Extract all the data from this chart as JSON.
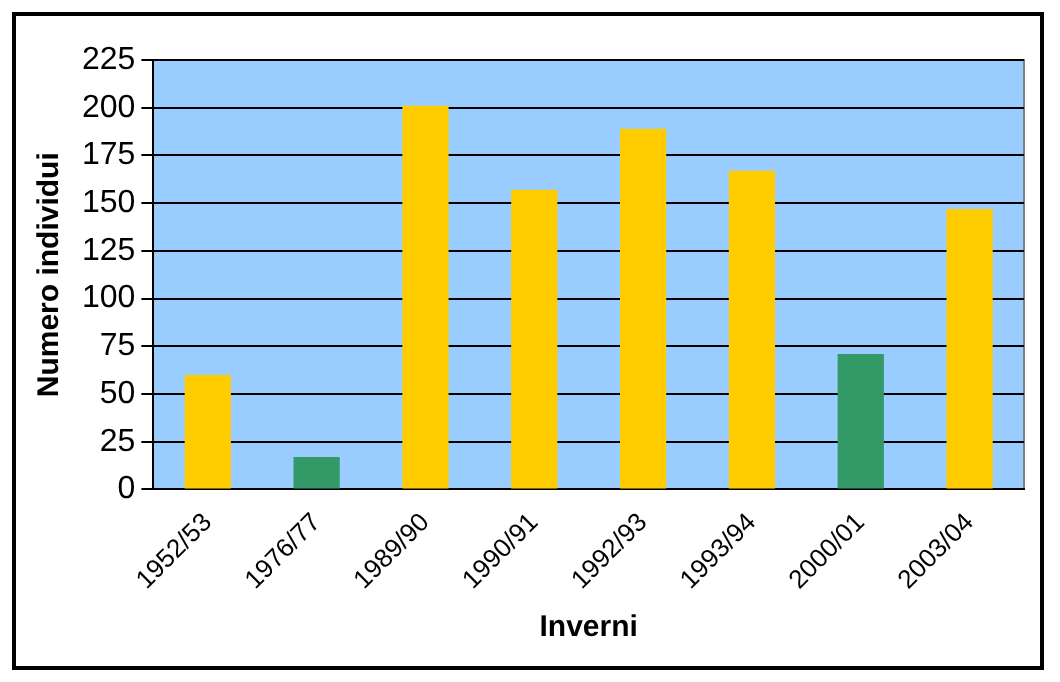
{
  "chart_data": {
    "type": "bar",
    "xlabel": "Inverni",
    "ylabel": "Numero individui",
    "categories": [
      "1952/53",
      "1976/77",
      "1989/90",
      "1990/91",
      "1992/93",
      "1993/94",
      "2000/01",
      "2003/04"
    ],
    "values": [
      60,
      17,
      201,
      157,
      189,
      167,
      71,
      147
    ],
    "colors": [
      "#ffcc00",
      "#339966",
      "#ffcc00",
      "#ffcc00",
      "#ffcc00",
      "#ffcc00",
      "#339966",
      "#ffcc00"
    ],
    "ylim": [
      0,
      225
    ],
    "yticks": [
      0,
      25,
      50,
      75,
      100,
      125,
      150,
      175,
      200,
      225
    ],
    "grid": "y",
    "legend": false
  }
}
